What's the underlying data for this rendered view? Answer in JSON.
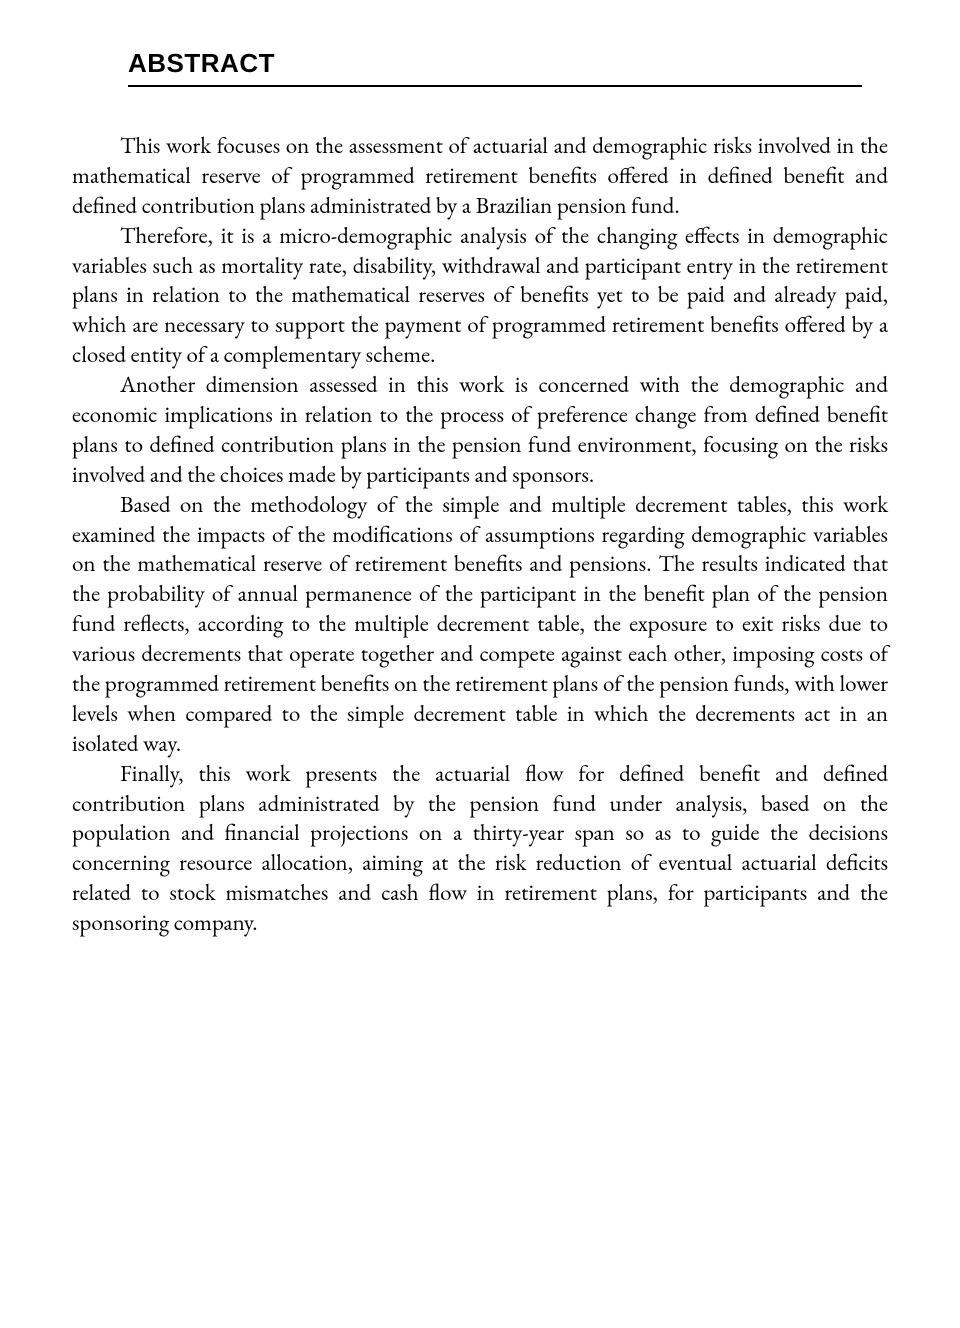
{
  "heading": "ABSTRACT",
  "paragraphs": {
    "p1": "This work focuses on the assessment of actuarial and demographic risks involved in the mathematical reserve of programmed retirement benefits offered in defined benefit and defined contribution plans administrated by a Brazilian pension fund.",
    "p2": "Therefore, it is a micro-demographic analysis of the changing effects in demographic variables such as mortality rate, disability, withdrawal and participant entry in the retirement plans in relation to the mathematical reserves of benefits yet to be paid and already paid, which are necessary to support the payment of programmed retirement benefits offered by a closed entity of a complementary scheme.",
    "p3": "Another dimension assessed in this work is concerned with the demographic and economic implications in relation to the process of preference change from defined benefit plans to defined contribution plans in the pension fund environment, focusing on the risks involved and the choices made by participants and sponsors.",
    "p4": "Based on the methodology of the simple and multiple decrement tables, this work examined the impacts of the modifications of assumptions regarding demographic variables on the mathematical reserve of retirement benefits and pensions. The results indicated that the probability of annual permanence of the participant in the benefit plan of the pension fund reflects, according to the multiple decrement table, the exposure to exit risks due to various decrements that operate together and compete against each other, imposing costs of the programmed retirement benefits on the retirement plans of the pension funds, with lower levels when compared to the simple decrement table in which the decrements act in an isolated way.",
    "p5": "Finally, this work presents the actuarial flow for defined benefit and defined contribution plans administrated by the pension fund under analysis, based on the population and financial projections on a thirty-year span so as to guide the decisions concerning resource allocation, aiming at the risk reduction of eventual actuarial deficits related to stock mismatches and cash flow in retirement plans, for participants and the sponsoring company."
  },
  "style": {
    "background_color": "#ffffff",
    "text_color": "#000000",
    "heading_font_family": "Arial, Helvetica, sans-serif",
    "heading_font_size": 26,
    "heading_font_weight": 700,
    "body_font_family": "Garamond, Georgia, serif",
    "body_font_size": 23,
    "body_line_height": 1.3,
    "rule_thickness": 2.5,
    "rule_color": "#000000",
    "text_align": "justify",
    "paragraph_indent": 48
  }
}
